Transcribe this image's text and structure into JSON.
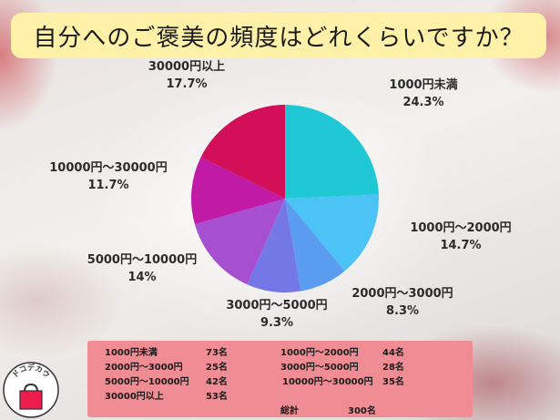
{
  "title": "自分へのご褒美の頻度はどれくらいですか？",
  "logo_text": "ドコデカウ",
  "chart_data": {
    "type": "pie",
    "title": "自分へのご褒美の頻度はどれくらいですか？",
    "slices": [
      {
        "label": "1000円未満",
        "value": 24.3,
        "display": "24.3%",
        "color": "#1fc8d4"
      },
      {
        "label": "1000円～2000円",
        "value": 14.7,
        "display": "14.7%",
        "color": "#4cc3f5"
      },
      {
        "label": "2000円～3000円",
        "value": 8.3,
        "display": "8.3%",
        "color": "#5a9cf0"
      },
      {
        "label": "3000円～5000円",
        "value": 9.3,
        "display": "9.3%",
        "color": "#7477e6"
      },
      {
        "label": "5000円～10000円",
        "value": 14,
        "display": "14%",
        "color": "#a64fd1"
      },
      {
        "label": "10000円～30000円",
        "value": 11.7,
        "display": "11.7%",
        "color": "#c01aa6"
      },
      {
        "label": "30000円以上",
        "value": 17.7,
        "display": "17.7%",
        "color": "#d20f58"
      }
    ]
  },
  "table": {
    "rows": [
      [
        {
          "label": "1000円未満",
          "count": "73名"
        },
        {
          "label": "1000円～2000円",
          "count": "44名"
        }
      ],
      [
        {
          "label": "2000円～3000円",
          "count": "25名"
        },
        {
          "label": "3000円～5000円",
          "count": "28名"
        }
      ],
      [
        {
          "label": "5000円～10000円",
          "count": "42名"
        },
        {
          "label": "10000円～30000円",
          "count": "35名"
        }
      ],
      [
        {
          "label": "30000円以上",
          "count": "53名"
        }
      ]
    ],
    "total_label": "総計",
    "total_value": "300名"
  }
}
